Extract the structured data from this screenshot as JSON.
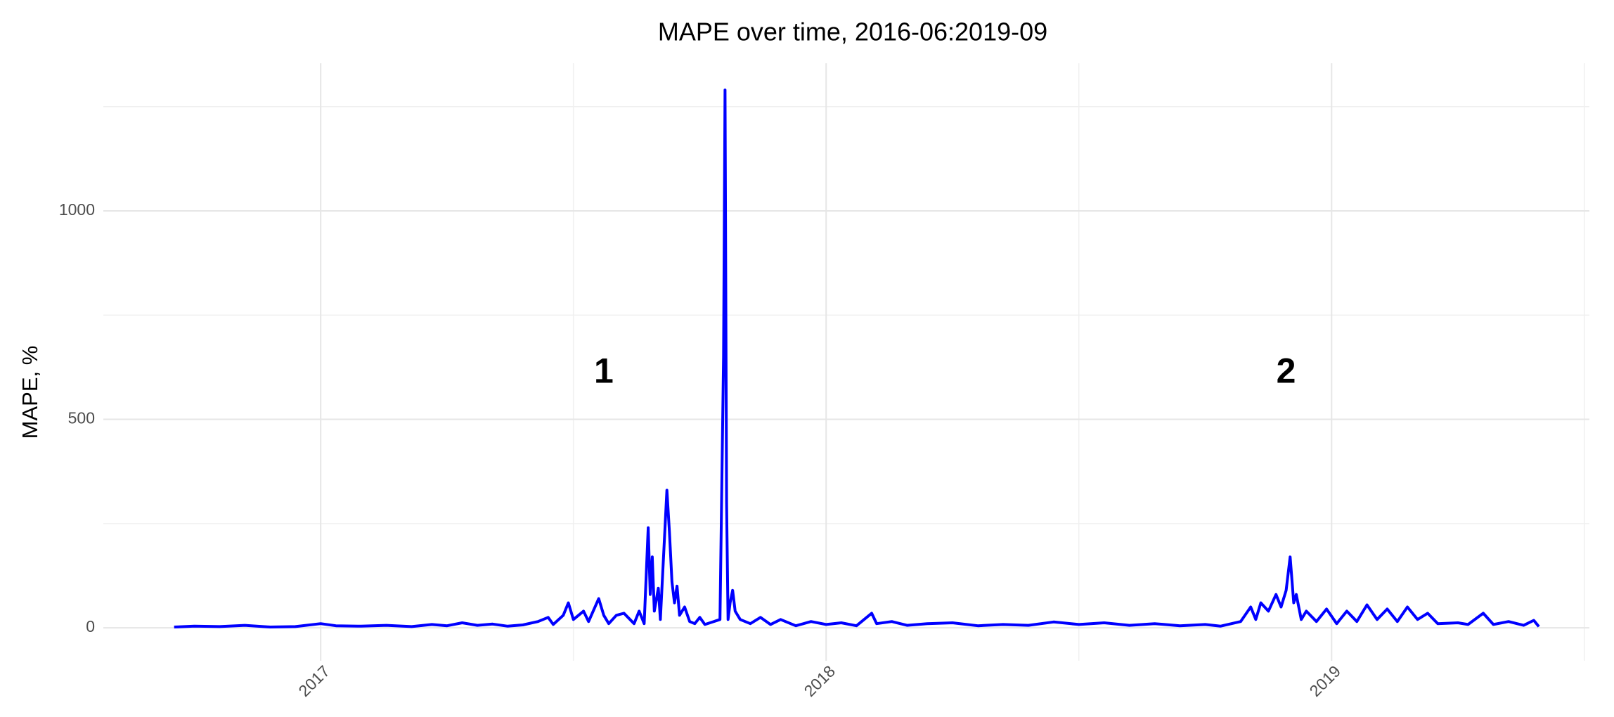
{
  "chart_data": {
    "type": "line",
    "title": "MAPE over time, 2016-06:2019-09",
    "y_label": "MAPE, %",
    "color": "#0000ff",
    "xlim": [
      2016.57,
      2019.51
    ],
    "xticks": [
      2017,
      2018,
      2019
    ],
    "x_minor_grid": [
      2017.5,
      2018.5,
      2019.5
    ],
    "ylim": [
      -79,
      1354
    ],
    "yticks": [
      0,
      500,
      1000
    ],
    "y_minor_grid": [
      250,
      750,
      1250
    ],
    "grid": true,
    "annotations": [
      {
        "text": "1",
        "x": 2017.56,
        "y": 610
      },
      {
        "text": "2",
        "x": 2018.91,
        "y": 610
      }
    ],
    "x": [
      2016.71,
      2016.75,
      2016.8,
      2016.85,
      2016.9,
      2016.95,
      2017.0,
      2017.03,
      2017.08,
      2017.13,
      2017.18,
      2017.22,
      2017.25,
      2017.28,
      2017.31,
      2017.34,
      2017.37,
      2017.4,
      2017.43,
      2017.45,
      2017.46,
      2017.48,
      2017.49,
      2017.5,
      2017.52,
      2017.53,
      2017.55,
      2017.56,
      2017.57,
      2017.585,
      2017.6,
      2017.62,
      2017.63,
      2017.64,
      2017.648,
      2017.652,
      2017.656,
      2017.66,
      2017.668,
      2017.672,
      2017.685,
      2017.69,
      2017.695,
      2017.7,
      2017.705,
      2017.71,
      2017.72,
      2017.73,
      2017.74,
      2017.75,
      2017.76,
      2017.79,
      2017.797,
      2017.8,
      2017.803,
      2017.806,
      2017.81,
      2017.815,
      2017.82,
      2017.83,
      2017.85,
      2017.87,
      2017.89,
      2017.91,
      2017.94,
      2017.97,
      2018.0,
      2018.03,
      2018.06,
      2018.09,
      2018.1,
      2018.13,
      2018.16,
      2018.2,
      2018.25,
      2018.3,
      2018.35,
      2018.4,
      2018.45,
      2018.5,
      2018.55,
      2018.6,
      2018.65,
      2018.7,
      2018.75,
      2018.78,
      2018.82,
      2018.84,
      2018.85,
      2018.86,
      2018.875,
      2018.89,
      2018.9,
      2018.91,
      2018.918,
      2018.925,
      2018.93,
      2018.94,
      2018.95,
      2018.97,
      2018.99,
      2019.01,
      2019.03,
      2019.05,
      2019.07,
      2019.09,
      2019.11,
      2019.13,
      2019.15,
      2019.17,
      2019.19,
      2019.21,
      2019.25,
      2019.27,
      2019.3,
      2019.32,
      2019.35,
      2019.38,
      2019.4,
      2019.41
    ],
    "values": [
      2,
      4,
      3,
      6,
      2,
      3,
      10,
      5,
      4,
      6,
      3,
      8,
      5,
      12,
      6,
      9,
      4,
      7,
      15,
      25,
      8,
      30,
      60,
      20,
      40,
      15,
      70,
      30,
      10,
      30,
      35,
      10,
      40,
      10,
      240,
      80,
      170,
      40,
      95,
      20,
      330,
      230,
      110,
      60,
      100,
      30,
      50,
      15,
      10,
      25,
      8,
      20,
      650,
      1290,
      300,
      20,
      60,
      90,
      40,
      20,
      10,
      25,
      8,
      20,
      5,
      15,
      8,
      12,
      5,
      35,
      10,
      15,
      6,
      10,
      12,
      5,
      8,
      6,
      14,
      8,
      12,
      6,
      10,
      5,
      8,
      4,
      15,
      50,
      20,
      60,
      40,
      80,
      50,
      90,
      170,
      60,
      80,
      20,
      40,
      15,
      45,
      10,
      40,
      15,
      55,
      20,
      45,
      15,
      50,
      20,
      35,
      10,
      12,
      8,
      35,
      8,
      15,
      6,
      18,
      3
    ]
  }
}
